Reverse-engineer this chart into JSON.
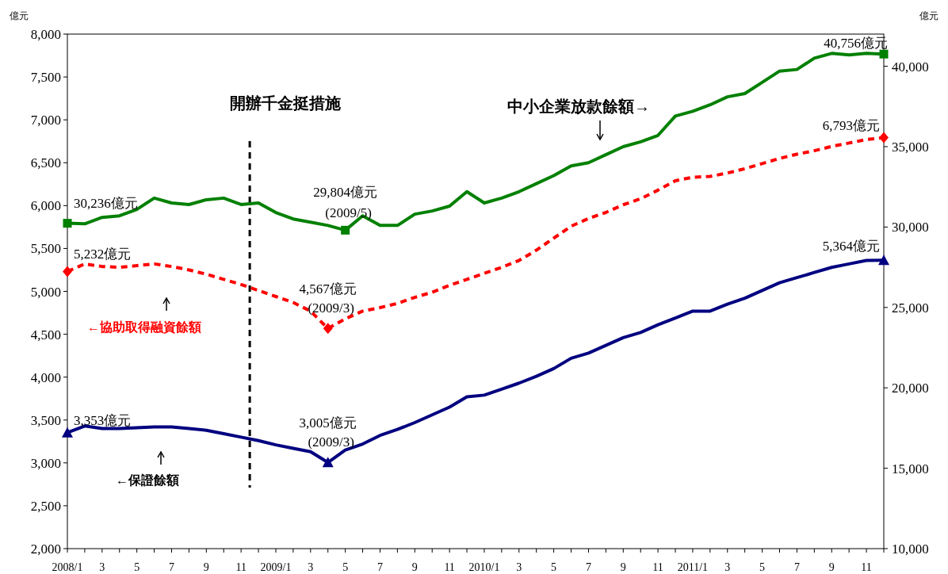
{
  "chart_data": {
    "type": "line",
    "ylabel": "億元",
    "y2label": "億元",
    "ylim": [
      2000,
      8000
    ],
    "yticks": [
      {
        "value": 2000,
        "label": "2,000"
      },
      {
        "value": 2500,
        "label": "2,500"
      },
      {
        "value": 3000,
        "label": "3,000"
      },
      {
        "value": 3500,
        "label": "3,500"
      },
      {
        "value": 4000,
        "label": "4,000"
      },
      {
        "value": 4500,
        "label": "4,500"
      },
      {
        "value": 5000,
        "label": "5,000"
      },
      {
        "value": 5500,
        "label": "5,500"
      },
      {
        "value": 6000,
        "label": "6,000"
      },
      {
        "value": 6500,
        "label": "6,500"
      },
      {
        "value": 7000,
        "label": "7,000"
      },
      {
        "value": 7500,
        "label": "7,500"
      },
      {
        "value": 8000,
        "label": "8,000"
      }
    ],
    "y2lim": [
      10000,
      42000
    ],
    "y2ticks": [
      {
        "value": 10000,
        "label": "10,000"
      },
      {
        "value": 15000,
        "label": "15,000"
      },
      {
        "value": 20000,
        "label": "20,000"
      },
      {
        "value": 25000,
        "label": "25,000"
      },
      {
        "value": 30000,
        "label": "30,000"
      },
      {
        "value": 35000,
        "label": "35,000"
      },
      {
        "value": 40000,
        "label": "40,000"
      }
    ],
    "categories": [
      "2008/1",
      null,
      "3",
      null,
      "5",
      null,
      "7",
      null,
      "9",
      null,
      "11",
      null,
      "2009/1",
      null,
      "3",
      null,
      "5",
      null,
      "7",
      null,
      "9",
      null,
      "11",
      null,
      "2010/1",
      null,
      "3",
      null,
      "5",
      null,
      "7",
      null,
      "9",
      null,
      "11",
      null,
      "2011/1",
      null,
      "3",
      null,
      "5",
      null,
      "7",
      null,
      "9",
      null,
      "11",
      null
    ],
    "series": [
      {
        "name": "中小企業放款餘額→",
        "color": "#008000",
        "axis": "y2",
        "values": [
          30236,
          30200,
          30600,
          30700,
          31100,
          31800,
          31500,
          31400,
          31700,
          31800,
          31400,
          31500,
          30900,
          30500,
          30300,
          30100,
          29804,
          30700,
          30100,
          30100,
          30800,
          31000,
          31300,
          32200,
          31500,
          31800,
          32200,
          32700,
          33200,
          33800,
          34000,
          34500,
          35000,
          35300,
          35700,
          36900,
          37200,
          37600,
          38100,
          38300,
          39000,
          39700,
          39800,
          40500,
          40800,
          40700,
          40800,
          40756
        ],
        "value_labels": [
          "30,236億元",
          null,
          null,
          null,
          null,
          null,
          null,
          null,
          null,
          null,
          null,
          null,
          null,
          null,
          null,
          null,
          "29,804億元 (2009/5)",
          null,
          null,
          null,
          null,
          null,
          null,
          null,
          null,
          null,
          null,
          null,
          null,
          null,
          null,
          null,
          null,
          null,
          null,
          null,
          null,
          null,
          null,
          null,
          null,
          null,
          null,
          null,
          null,
          null,
          null,
          "40,756億元"
        ]
      },
      {
        "name": "←協助取得融資餘額",
        "color": "#ff0000",
        "line_style": "dashed",
        "values": [
          5232,
          5320,
          5290,
          5280,
          5300,
          5320,
          5290,
          5250,
          5200,
          5140,
          5080,
          5010,
          4940,
          4870,
          4770,
          4567,
          4680,
          4770,
          4810,
          4860,
          4930,
          4990,
          5070,
          5140,
          5210,
          5280,
          5360,
          5480,
          5620,
          5760,
          5850,
          5920,
          6010,
          6080,
          6180,
          6290,
          6330,
          6340,
          6380,
          6430,
          6490,
          6550,
          6600,
          6640,
          6690,
          6730,
          6770,
          6793
        ],
        "value_labels": [
          "5,232億元",
          null,
          null,
          null,
          null,
          null,
          null,
          null,
          null,
          null,
          null,
          null,
          null,
          null,
          null,
          "4,567億元 (2009/3)",
          null,
          null,
          null,
          null,
          null,
          null,
          null,
          null,
          null,
          null,
          null,
          null,
          null,
          null,
          null,
          null,
          null,
          null,
          null,
          null,
          null,
          null,
          null,
          null,
          null,
          null,
          null,
          null,
          null,
          null,
          null,
          "6,793億元"
        ]
      },
      {
        "name": "←保證餘額",
        "color": "#000080",
        "values": [
          3353,
          3430,
          3400,
          3400,
          3410,
          3420,
          3420,
          3400,
          3380,
          3340,
          3300,
          3260,
          3210,
          3170,
          3130,
          3005,
          3150,
          3220,
          3320,
          3390,
          3470,
          3560,
          3650,
          3770,
          3790,
          3860,
          3930,
          4010,
          4100,
          4220,
          4280,
          4370,
          4460,
          4520,
          4610,
          4690,
          4770,
          4770,
          4850,
          4920,
          5010,
          5100,
          5160,
          5220,
          5280,
          5320,
          5360,
          5364
        ],
        "value_labels": [
          "3,353億元",
          null,
          null,
          null,
          null,
          null,
          null,
          null,
          null,
          null,
          null,
          null,
          null,
          null,
          null,
          "3,005億元 (2009/3)",
          null,
          null,
          null,
          null,
          null,
          null,
          null,
          null,
          null,
          null,
          null,
          null,
          null,
          null,
          null,
          null,
          null,
          null,
          null,
          null,
          null,
          null,
          null,
          null,
          null,
          null,
          null,
          null,
          null,
          null,
          null,
          "5,364億元"
        ]
      }
    ],
    "annotations": [
      "開辦千金挺措施"
    ],
    "grid": false
  }
}
